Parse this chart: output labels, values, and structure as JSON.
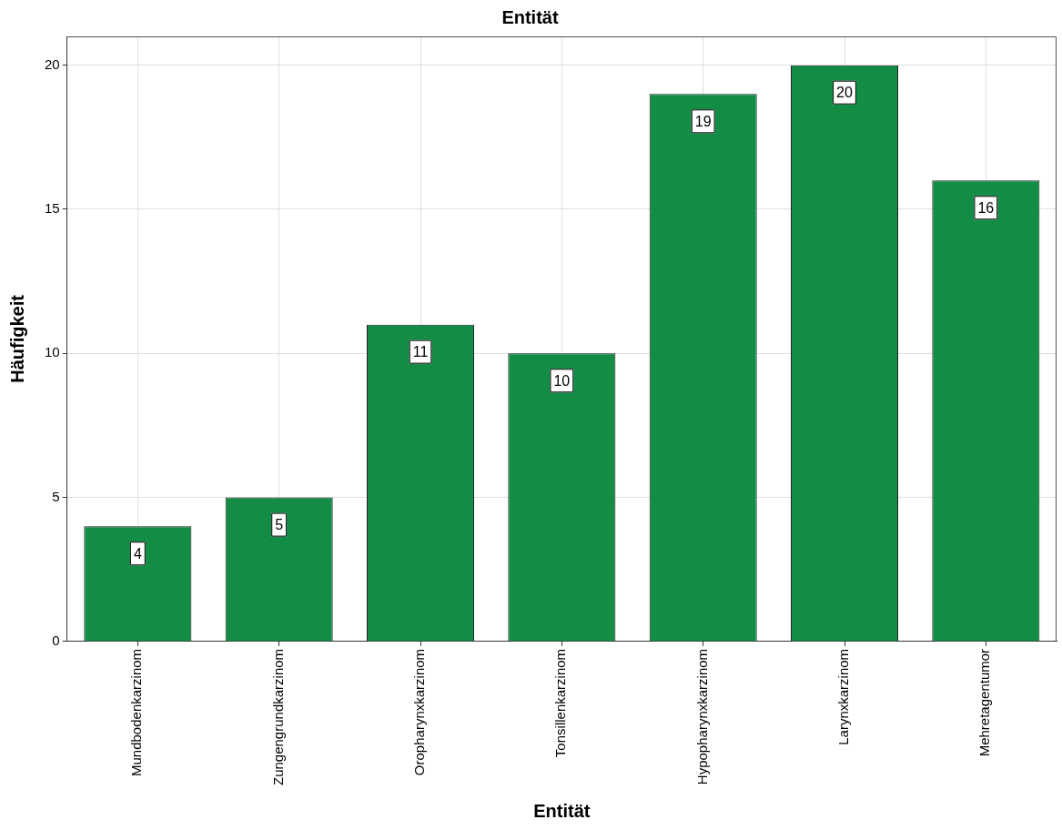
{
  "chart_data": {
    "type": "bar",
    "title": "Entität",
    "xlabel": "Entität",
    "ylabel": "Häufigkeit",
    "categories": [
      "Mundbodenkarzinom",
      "Zungengrundkarzinom",
      "Oropharynxkarzinom",
      "Tonsillenkarzinom",
      "Hypopharynxkarzinom",
      "Larynxkarzinom",
      "Mehretagentumor"
    ],
    "values": [
      4,
      5,
      11,
      10,
      19,
      20,
      16
    ],
    "color": "#138d46",
    "ylim": [
      0,
      21
    ],
    "yticks": [
      0,
      5,
      10,
      15,
      20
    ],
    "grid": true,
    "legend": false,
    "data_labels": true
  }
}
